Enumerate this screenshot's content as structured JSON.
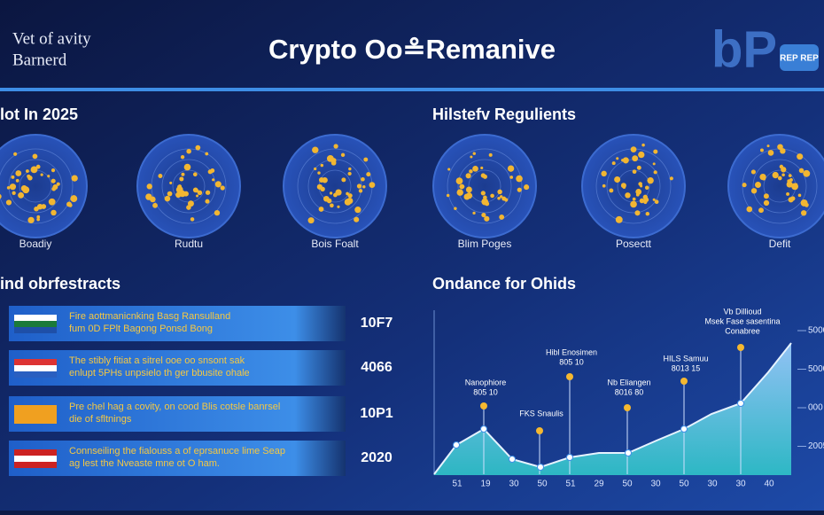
{
  "header": {
    "tagline": [
      "Vet of avity",
      "Barnerd"
    ],
    "title": "Crypto Oo≗Remanive",
    "logo": "bP",
    "badge": "REP REP"
  },
  "left_section": {
    "title": "lot In 2025",
    "items": [
      "Boadiy",
      "Rudtu",
      "Bois Foalt"
    ]
  },
  "right_section": {
    "title": "Hilstefv Regulients",
    "items": [
      "Blim Poges",
      "Posectt",
      "Defit"
    ]
  },
  "list_section": {
    "title": "ind obrfestracts",
    "rows": [
      {
        "lines": [
          "Fire aottmanicnking Basg Ransulland",
          "fum 0D FPlt Bagong Ponsd Bong"
        ],
        "value": "10F7"
      },
      {
        "lines": [
          "The stibly fitiat a sitrel ooe oo snsont sak",
          "enlupt 5PHs unpsielo th ger bbusite ohale"
        ],
        "value": "4066"
      },
      {
        "lines": [
          "Pre chel hag a covity, on cood Blis cotsle banrsel",
          "die of sfltnings"
        ],
        "value": "10P1"
      },
      {
        "lines": [
          "Connseiling the fialouss a of eprsanuce lime Seap",
          "ag lest the Nveaste mne ot O ham."
        ],
        "value": "2020"
      }
    ]
  },
  "chart_section": {
    "title": "Ondance for Ohids",
    "x_labels": [
      "51",
      "19",
      "30",
      "50",
      "51",
      "29",
      "50",
      "30",
      "50",
      "30",
      "30",
      "40"
    ],
    "y_labels": [
      "5000",
      "5000",
      "000",
      "2005"
    ],
    "annotations": [
      [
        "Nanophiore",
        "805 10"
      ],
      [
        "FKS Snaulis"
      ],
      [
        "Hibl Enosimen",
        "805 10"
      ],
      [
        "Nb Eliangen",
        "8016 80"
      ],
      [
        "HILS Samuu",
        "8013 15"
      ],
      [
        "Vb Dillioud",
        "Msek Fase sasentina",
        "Conabree"
      ]
    ]
  }
}
